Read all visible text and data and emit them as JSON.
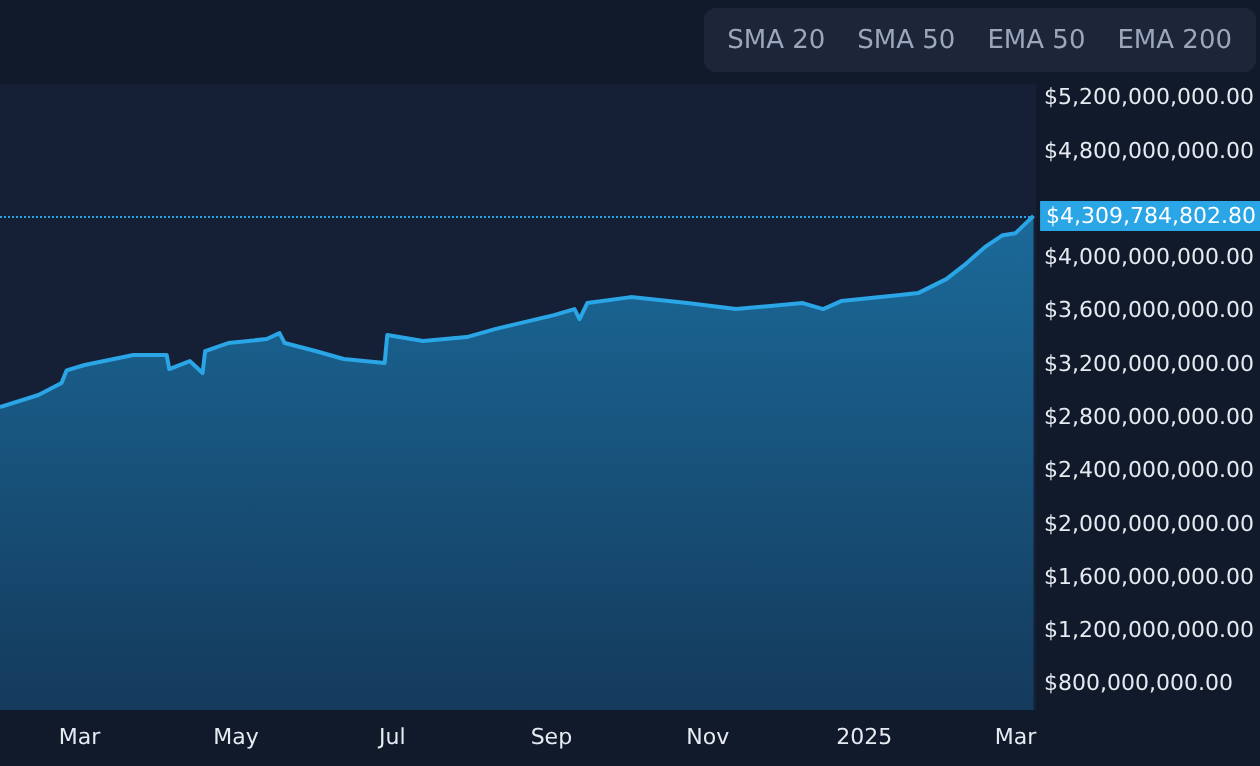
{
  "chart_data": {
    "type": "area",
    "color": "#2aa5e6",
    "x": [
      "2024-01-30",
      "2024-02-14",
      "2024-02-23",
      "2024-02-25",
      "2024-03-03",
      "2024-03-22",
      "2024-04-04",
      "2024-04-05",
      "2024-04-13",
      "2024-04-18",
      "2024-04-19",
      "2024-04-28",
      "2024-05-13",
      "2024-05-18",
      "2024-05-20",
      "2024-06-01",
      "2024-06-12",
      "2024-06-28",
      "2024-06-29",
      "2024-07-13",
      "2024-07-30",
      "2024-08-10",
      "2024-09-02",
      "2024-09-10",
      "2024-09-12",
      "2024-09-15",
      "2024-10-02",
      "2024-10-24",
      "2024-11-12",
      "2024-12-08",
      "2024-12-16",
      "2024-12-23",
      "2025-01-15",
      "2025-01-22",
      "2025-02-02",
      "2025-02-09",
      "2025-02-17",
      "2025-02-24",
      "2025-03-01",
      "2025-03-08"
    ],
    "values": [
      2875000000,
      2965000000,
      3055000000,
      3150000000,
      3190000000,
      3265000000,
      3265000000,
      3160000000,
      3220000000,
      3130000000,
      3295000000,
      3355000000,
      3385000000,
      3430000000,
      3355000000,
      3295000000,
      3235000000,
      3205000000,
      3415000000,
      3370000000,
      3400000000,
      3460000000,
      3565000000,
      3610000000,
      3535000000,
      3655000000,
      3700000000,
      3655000000,
      3610000000,
      3655000000,
      3610000000,
      3670000000,
      3715000000,
      3730000000,
      3835000000,
      3940000000,
      4075000000,
      4165000000,
      4180000000,
      4309784802.8
    ],
    "xlim": [
      "2024-01-30",
      "2025-03-09"
    ],
    "xticks": [
      {
        "value": "2024-03-01",
        "label": "Mar"
      },
      {
        "value": "2024-05-01",
        "label": "May"
      },
      {
        "value": "2024-07-01",
        "label": "Jul"
      },
      {
        "value": "2024-09-01",
        "label": "Sep"
      },
      {
        "value": "2024-11-01",
        "label": "Nov"
      },
      {
        "value": "2025-01-01",
        "label": "2025"
      },
      {
        "value": "2025-03-01",
        "label": "Mar"
      }
    ],
    "ylim": [
      600000000,
      5300000000
    ],
    "yticks": [
      {
        "value": 800000000,
        "label": "$800,000,000.00"
      },
      {
        "value": 1200000000,
        "label": "$1,200,000,000.00"
      },
      {
        "value": 1600000000,
        "label": "$1,600,000,000.00"
      },
      {
        "value": 2000000000,
        "label": "$2,000,000,000.00"
      },
      {
        "value": 2400000000,
        "label": "$2,400,000,000.00"
      },
      {
        "value": 2800000000,
        "label": "$2,800,000,000.00"
      },
      {
        "value": 3200000000,
        "label": "$3,200,000,000.00"
      },
      {
        "value": 3600000000,
        "label": "$3,600,000,000.00"
      },
      {
        "value": 4000000000,
        "label": "$4,000,000,000.00"
      },
      {
        "value": 4800000000,
        "label": "$4,800,000,000.00"
      },
      {
        "value": 5200000000,
        "label": "$5,200,000,000.00"
      }
    ],
    "ref_lines": [
      {
        "axis": "y",
        "value": 4309784802.8,
        "label": "$4,309,784,802.80",
        "color": "#2aa5e6",
        "line_style": "dotted"
      }
    ],
    "annotations": [
      "SMA 20",
      "SMA 50",
      "EMA 50",
      "EMA 200"
    ],
    "grid": false,
    "marker": "none",
    "line_style": "solid"
  }
}
